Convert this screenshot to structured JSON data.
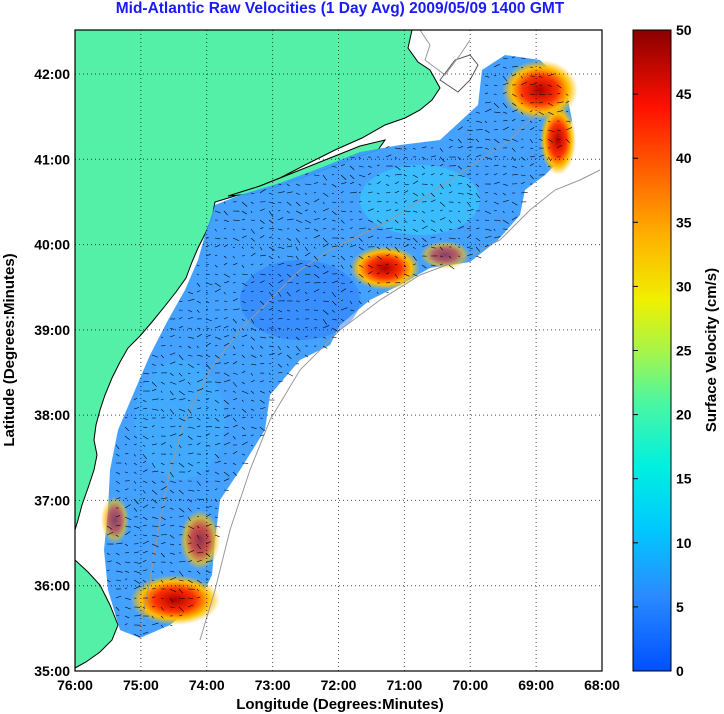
{
  "title": "Mid-Atlantic Raw Velocities (1 Day Avg) 2009/05/09 1400 GMT",
  "xaxis": {
    "label": "Longitude (Degrees:Minutes)",
    "ticks": [
      "76:00",
      "75:00",
      "74:00",
      "73:00",
      "72:00",
      "71:00",
      "70:00",
      "69:00",
      "68:00"
    ]
  },
  "yaxis": {
    "label": "Latitude (Degrees:Minutes)",
    "ticks": [
      "35:00",
      "36:00",
      "37:00",
      "38:00",
      "39:00",
      "40:00",
      "41:00",
      "42:00"
    ]
  },
  "colorbar": {
    "label": "Surface Velocity (cm/s)",
    "ticks": [
      "0",
      "5",
      "10",
      "15",
      "20",
      "25",
      "30",
      "35",
      "40",
      "45",
      "50"
    ],
    "range": [
      0,
      50
    ]
  },
  "colors": {
    "land": "#55f0a8",
    "water_slow": "#2f8fff",
    "water_mid": "#2fd0ff",
    "fast": "#ff2a00",
    "title": "#1a1aff"
  }
}
